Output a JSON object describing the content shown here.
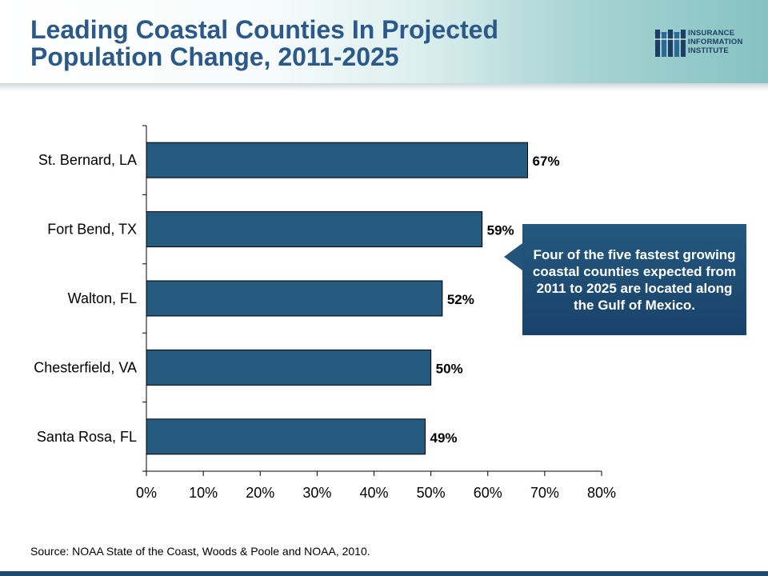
{
  "slide": {
    "title_line1": "Leading Coastal Counties In Projected",
    "title_line2": "Population Change, 2011-2025"
  },
  "logo": {
    "line1": "INSURANCE",
    "line2": "INFORMATION",
    "line3": "INSTITUTE",
    "icon": "iii-logo-icon"
  },
  "chart_data": {
    "type": "bar",
    "orientation": "horizontal",
    "title": "",
    "xlabel": "",
    "ylabel": "",
    "categories": [
      "St. Bernard, LA",
      "Fort Bend, TX",
      "Walton, FL",
      "Chesterfield, VA",
      "Santa Rosa, FL"
    ],
    "values": [
      67,
      59,
      52,
      50,
      49
    ],
    "value_labels": [
      "67%",
      "59%",
      "52%",
      "50%",
      "49%"
    ],
    "xlim": [
      0,
      80
    ],
    "x_ticks": [
      0,
      10,
      20,
      30,
      40,
      50,
      60,
      70,
      80
    ],
    "x_tick_labels": [
      "0%",
      "10%",
      "20%",
      "30%",
      "40%",
      "50%",
      "60%",
      "70%",
      "80%"
    ],
    "grid": false,
    "bar_color": "#245a7e"
  },
  "callout": {
    "text": "Four of the five fastest growing coastal counties expected from 2011 to 2025 are located along the Gulf of Mexico."
  },
  "source": {
    "text": "Source: NOAA State of the Coast, Woods & Poole and NOAA, 2010."
  }
}
